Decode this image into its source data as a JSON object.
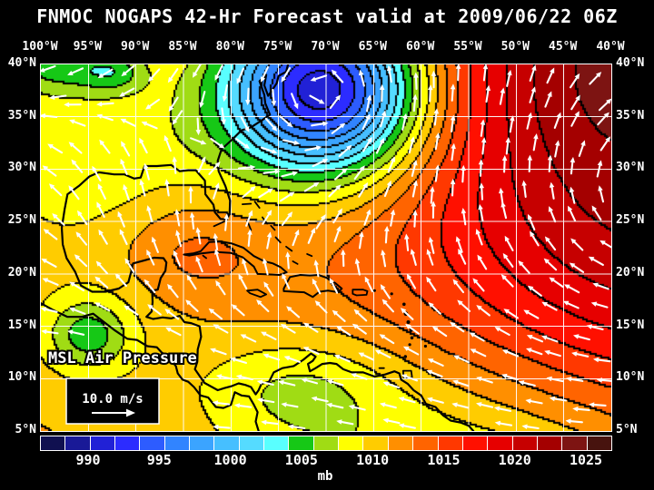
{
  "title": "FNMOC NOGAPS 42-Hr Forecast valid at 2009/06/22 06Z",
  "axes": {
    "lon_labels": [
      "100°W",
      "95°W",
      "90°W",
      "85°W",
      "80°W",
      "75°W",
      "70°W",
      "65°W",
      "60°W",
      "55°W",
      "50°W",
      "45°W",
      "40°W"
    ],
    "lat_labels": [
      "40°N",
      "35°N",
      "30°N",
      "25°N",
      "20°N",
      "15°N",
      "10°N",
      "5°N"
    ]
  },
  "overlay": {
    "field_label": "MSL Air Pressure",
    "wind_scale_label": "10.0 m/s"
  },
  "colorbar": {
    "unit": "mb",
    "ticks": [
      "990",
      "995",
      "1000",
      "1005",
      "1010",
      "1015",
      "1020",
      "1025"
    ],
    "colors": [
      "#101050",
      "#191997",
      "#2121D6",
      "#2C2CFF",
      "#2D5CFF",
      "#3184FF",
      "#3BA4FF",
      "#46BFFF",
      "#55DBFF",
      "#59FFFF",
      "#16C816",
      "#A0DC14",
      "#FFFF00",
      "#FFCC00",
      "#FF8F00",
      "#FF6400",
      "#FF3800",
      "#FF1000",
      "#E60000",
      "#C60000",
      "#A40000",
      "#7D1412",
      "#47130E"
    ]
  },
  "colors": {
    "background": "#000000",
    "text": "#FFFFFF",
    "frame": "#FFFFFF",
    "grid_lines": "#FFFFFF",
    "contour_lines": "#000000",
    "coastlines": "#000000",
    "wind_arrows": "#FFFFFF"
  },
  "map_model": {
    "base_mb": 1013.6,
    "bin_start_mb": 985,
    "bin_step_mb": 2,
    "gaussians_mb": [
      [
        -26,
        313,
        28,
        78,
        68
      ],
      [
        12,
        665,
        125,
        200,
        260
      ],
      [
        4,
        640,
        -30,
        130,
        90
      ],
      [
        -4.2,
        55,
        95,
        110,
        85
      ],
      [
        -5.5,
        15,
        0,
        42,
        22
      ],
      [
        -4.5,
        80,
        8,
        26,
        16
      ],
      [
        2.8,
        160,
        205,
        55,
        40
      ],
      [
        -3.8,
        285,
        355,
        80,
        42
      ],
      [
        -5,
        52,
        298,
        30,
        26
      ],
      [
        -2.5,
        52,
        298,
        70,
        55
      ],
      [
        -9,
        520,
        480,
        200,
        120
      ]
    ],
    "wind": {
      "cyclone": [
        313,
        28,
        2.6,
        150
      ],
      "anticyclone": [
        665,
        140,
        1.8,
        300
      ],
      "southerly_gulf": [
        130,
        170,
        95,
        85,
        1.0
      ],
      "easterly": [
        0.25,
        1.1,
        1.6,
        0.12
      ]
    }
  }
}
